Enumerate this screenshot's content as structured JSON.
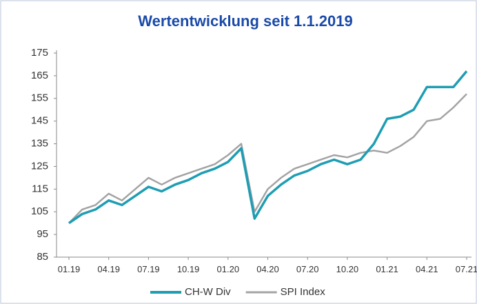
{
  "chart_data": {
    "type": "line",
    "title": "Wertentwicklung seit 1.1.2019",
    "categories": [
      "01.19",
      null,
      null,
      "04.19",
      null,
      null,
      "07.19",
      null,
      null,
      "10.19",
      null,
      null,
      "01.20",
      null,
      null,
      "04.20",
      null,
      null,
      "07.20",
      null,
      null,
      "10.20",
      null,
      null,
      "01.21",
      null,
      null,
      "04.21",
      null,
      null,
      "07.21"
    ],
    "series": [
      {
        "name": "CH-W Div",
        "color": "#1e9db3",
        "values": [
          100,
          104,
          106,
          110,
          108,
          112,
          116,
          114,
          117,
          119,
          122,
          124,
          127,
          133,
          102,
          112,
          117,
          121,
          123,
          126,
          128,
          126,
          128,
          135,
          146,
          147,
          150,
          160,
          160,
          160,
          167
        ]
      },
      {
        "name": "SPI Index",
        "color": "#a3a3a3",
        "values": [
          100,
          106,
          108,
          113,
          110,
          115,
          120,
          117,
          120,
          122,
          124,
          126,
          130,
          135,
          105,
          115,
          120,
          124,
          126,
          128,
          130,
          129,
          131,
          132,
          131,
          134,
          138,
          145,
          146,
          151,
          157
        ]
      }
    ],
    "ylim": [
      85,
      175
    ],
    "yticks": [
      85,
      95,
      105,
      115,
      125,
      135,
      145,
      155,
      165,
      175
    ],
    "legend": "bottom"
  }
}
